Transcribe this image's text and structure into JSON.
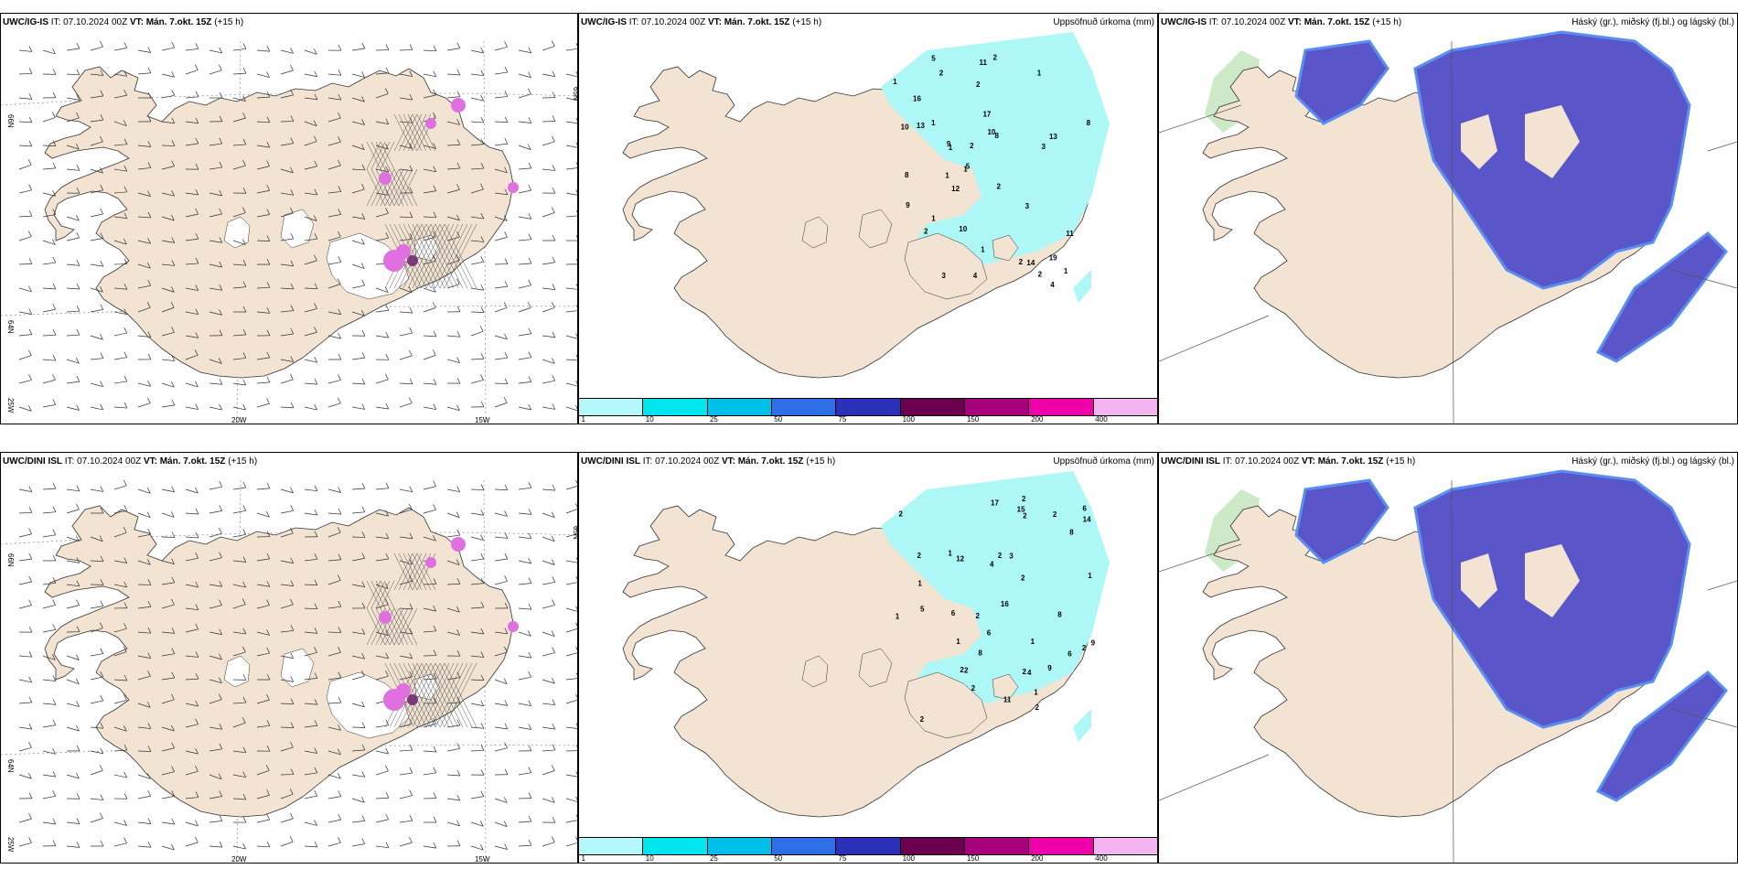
{
  "panels": [
    {
      "id": "p1",
      "kind": "wind",
      "model": "UWC/IG-IS",
      "it_label": "IT:",
      "it": "07.10.2024 00Z",
      "vt_label": "VT:",
      "vt": "Mán. 7.okt. 15Z",
      "lead": "(+15 h)",
      "right_title": "",
      "lat_labels": [
        "66N",
        "64N",
        "25W"
      ],
      "lon_labels": [
        "20W",
        "15W"
      ],
      "right_lat": "65N"
    },
    {
      "id": "p2",
      "kind": "precip",
      "model": "UWC/IG-IS",
      "it_label": "IT:",
      "it": "07.10.2024 00Z",
      "vt_label": "VT:",
      "vt": "Mán. 7.okt. 15Z",
      "lead": "(+15 h)",
      "right_title": "Uppsöfnuð úrkoma (mm)",
      "values": [
        "2",
        "2",
        "2",
        "8",
        "2",
        "5",
        "4",
        "2",
        "1",
        "8",
        "2",
        "1",
        "1",
        "3",
        "2",
        "5",
        "17",
        "10",
        "19",
        "13",
        "16",
        "12",
        "1",
        "2",
        "3",
        "11",
        "14",
        "8",
        "3",
        "9",
        "4",
        "1",
        "11",
        "10",
        "10",
        "13",
        "9",
        "1",
        "1",
        "1",
        "1"
      ]
    },
    {
      "id": "p3",
      "kind": "cloud",
      "model": "UWC/IG-IS",
      "it_label": "IT:",
      "it": "07.10.2024 00Z",
      "vt_label": "VT:",
      "vt": "Mán. 7.okt. 15Z",
      "lead": "(+15 h)",
      "right_title": "Háský (gr.), miðský (fj.bl.) og lágský (bl.)"
    },
    {
      "id": "p4",
      "kind": "wind",
      "model": "UWC/DINI ISL",
      "it_label": "IT:",
      "it": "07.10.2024 00Z",
      "vt_label": "VT:",
      "vt": "Mán. 7.okt. 15Z",
      "lead": "(+15 h)",
      "right_title": "",
      "lat_labels": [
        "66N",
        "64N",
        "25W"
      ],
      "lon_labels": [
        "20W",
        "15W"
      ],
      "right_lat": "65N"
    },
    {
      "id": "p5",
      "kind": "precip",
      "model": "UWC/DINI ISL",
      "it_label": "IT:",
      "it": "07.10.2024 00Z",
      "vt_label": "VT:",
      "vt": "Mán. 7.okt. 15Z",
      "lead": "(+15 h)",
      "right_title": "Uppsöfnuð úrkoma (mm)",
      "values": [
        "1",
        "1",
        "2",
        "2",
        "2",
        "6",
        "2",
        "4",
        "2",
        "2",
        "6",
        "8",
        "2",
        "5",
        "9",
        "17",
        "15",
        "16",
        "1",
        "2",
        "2",
        "1",
        "11",
        "14",
        "9",
        "4",
        "6",
        "6",
        "2",
        "12",
        "3",
        "8",
        "8",
        "1",
        "2",
        "1",
        "2",
        "2",
        "2",
        "2",
        "1"
      ]
    },
    {
      "id": "p6",
      "kind": "cloud",
      "model": "UWC/DINI ISL",
      "it_label": "IT:",
      "it": "07.10.2024 00Z",
      "vt_label": "VT:",
      "vt": "Mán. 7.okt. 15Z",
      "lead": "(+15 h)",
      "right_title": "Háský (gr.), miðský (fj.bl.) og lágský (bl.)"
    }
  ],
  "colorbar": {
    "ticks": [
      "1",
      "10",
      "25",
      "50",
      "75",
      "100",
      "150",
      "200",
      "400"
    ],
    "colors": [
      "#b4f8fa",
      "#00e6ee",
      "#00bfe8",
      "#2e6ee6",
      "#2a30b8",
      "#6a004e",
      "#a8007c",
      "#f000a8",
      "#f4b4f0"
    ]
  },
  "colors": {
    "land": "#f2e3d2",
    "precip": "#aef7f7",
    "cloud_low": "#5a55c8",
    "cloud_mid": "#5a8ff0",
    "cloud_high": "#b8e0b0",
    "snow_pink": "#e070e0",
    "snow_dark": "#7a3a7a"
  }
}
